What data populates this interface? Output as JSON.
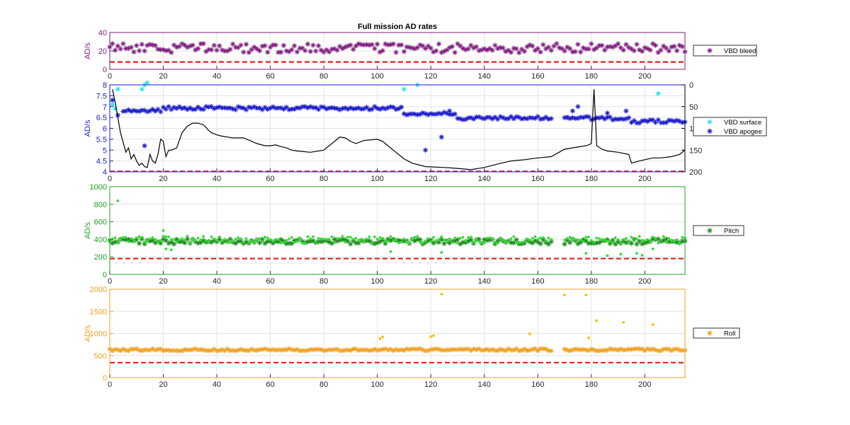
{
  "figure_title": "Full mission AD rates",
  "chart_data": [
    {
      "type": "scatter",
      "title": "Full mission AD rates",
      "ylabel": "AD/s",
      "xlim": [
        0,
        215
      ],
      "ylim": [
        0,
        40
      ],
      "xticks": [
        0,
        20,
        40,
        60,
        80,
        100,
        120,
        140,
        160,
        180,
        200
      ],
      "yticks": [
        0,
        20,
        40
      ],
      "grid": true,
      "legend": "right",
      "axis_color": "#7e1e7e",
      "series": [
        {
          "name": "VBD bleed",
          "marker": "asterisk",
          "color": "#7e1e7e",
          "model": "noisy",
          "base": 23,
          "amp": 5,
          "x_start": 0,
          "x_end": 215,
          "step": 1
        },
        {
          "marker": "dashed-line",
          "color": "#e0201e",
          "x": [
            0,
            215
          ],
          "y": [
            8,
            8
          ]
        }
      ]
    },
    {
      "type": "scatter",
      "ylabel": "AD/s",
      "xlim": [
        0,
        215
      ],
      "ylim": [
        4,
        8
      ],
      "y2lim": [
        200,
        0
      ],
      "xticks": [
        0,
        20,
        40,
        60,
        80,
        100,
        120,
        140,
        160,
        180,
        200
      ],
      "yticks": [
        4,
        4.5,
        5,
        5.5,
        6,
        6.5,
        7,
        7.5,
        8
      ],
      "y2ticks": [
        0,
        50,
        100,
        150,
        200
      ],
      "grid": true,
      "legend": "right",
      "axis_color": "#1a1acc",
      "series": [
        {
          "name": "VBD surface",
          "marker": "asterisk",
          "color": "#30e0ee",
          "x": [
            1,
            2,
            3,
            12,
            13,
            14,
            110,
            115,
            205
          ],
          "y": [
            7.1,
            6.9,
            7.8,
            7.8,
            8.0,
            8.1,
            7.8,
            8.0,
            7.6
          ]
        },
        {
          "name": "VBD apogee",
          "marker": "asterisk",
          "color": "#1a1acc",
          "x": [
            1,
            3,
            13,
            118,
            124,
            127,
            171,
            173,
            175,
            186,
            193
          ],
          "y": [
            7.3,
            6.6,
            5.2,
            5.0,
            5.6,
            6.8,
            6.5,
            6.8,
            7.0,
            6.7,
            6.8
          ]
        },
        {
          "marker": "asterisk",
          "color": "#1a1acc",
          "model": "apogee",
          "x_start": 5,
          "x_end": 215,
          "step": 1
        },
        {
          "marker": "line",
          "color": "#000000",
          "axis": "right",
          "x": [
            1,
            2,
            4,
            6,
            7,
            8,
            9,
            10,
            11,
            12,
            13,
            14,
            15,
            16,
            17,
            18,
            19,
            20,
            21,
            22,
            23,
            25,
            27,
            29,
            31,
            33,
            35,
            36,
            37,
            38,
            40,
            42,
            44,
            46,
            48,
            50,
            55,
            58,
            60,
            62,
            64,
            66,
            68,
            70,
            75,
            80,
            85,
            86,
            88,
            90,
            92,
            95,
            100,
            102,
            104,
            106,
            110,
            113,
            118,
            125,
            130,
            135,
            140,
            145,
            150,
            155,
            160,
            165,
            170,
            175,
            178,
            179,
            180,
            181,
            182,
            184,
            186,
            190,
            194,
            195,
            198,
            200,
            203,
            206,
            210,
            213,
            215
          ],
          "y": [
            10,
            40,
            110,
            155,
            145,
            170,
            160,
            175,
            185,
            180,
            188,
            190,
            160,
            175,
            180,
            160,
            125,
            130,
            165,
            150,
            150,
            145,
            110,
            95,
            88,
            88,
            92,
            98,
            105,
            110,
            115,
            118,
            120,
            122,
            122,
            122,
            135,
            140,
            140,
            138,
            142,
            145,
            150,
            152,
            155,
            150,
            125,
            120,
            122,
            130,
            135,
            128,
            125,
            130,
            140,
            150,
            170,
            180,
            188,
            190,
            192,
            195,
            190,
            182,
            175,
            172,
            168,
            165,
            148,
            143,
            140,
            138,
            135,
            10,
            140,
            148,
            152,
            155,
            160,
            180,
            175,
            172,
            168,
            168,
            165,
            160,
            150
          ]
        },
        {
          "marker": "dashed-line",
          "color": "#e0201e",
          "x": [
            0,
            215
          ],
          "y": [
            4.02,
            4.02
          ]
        }
      ]
    },
    {
      "type": "scatter",
      "ylabel": "AD/s",
      "xlim": [
        0,
        215
      ],
      "ylim": [
        0,
        1000
      ],
      "xticks": [
        0,
        20,
        40,
        60,
        80,
        100,
        120,
        140,
        160,
        180,
        200
      ],
      "yticks": [
        0,
        200,
        400,
        600,
        800,
        1000
      ],
      "grid": true,
      "legend": "right",
      "axis_color": "#20a020",
      "series": [
        {
          "name": "Pitch",
          "marker": "asterisk",
          "color": "#1f8a1f",
          "model": "noisy",
          "base": 375,
          "amp": 30,
          "x_start": 0,
          "x_end": 215,
          "step": 1,
          "gap": [
            165,
            170
          ]
        },
        {
          "marker": "dot",
          "color": "#33dd33",
          "model": "noisy",
          "base": 395,
          "amp": 40,
          "x_start": 0,
          "x_end": 215,
          "step": 1,
          "gap": [
            165,
            170
          ]
        },
        {
          "marker": "dot",
          "color": "#33dd33",
          "x": [
            3,
            20,
            21,
            23,
            105,
            124,
            178,
            186,
            191,
            197,
            199,
            203
          ],
          "y": [
            840,
            500,
            290,
            280,
            260,
            250,
            240,
            215,
            230,
            240,
            220,
            290
          ]
        },
        {
          "marker": "dashed-line",
          "color": "#e0201e",
          "x": [
            0,
            215
          ],
          "y": [
            180,
            180
          ]
        }
      ]
    },
    {
      "type": "scatter",
      "ylabel": "AD/s",
      "xlim": [
        0,
        215
      ],
      "ylim": [
        0,
        2000
      ],
      "xticks": [
        0,
        20,
        40,
        60,
        80,
        100,
        120,
        140,
        160,
        180,
        200
      ],
      "yticks": [
        0,
        500,
        1000,
        1500,
        2000
      ],
      "grid": true,
      "legend": "right",
      "axis_color": "#f0a020",
      "series": [
        {
          "name": "Roll",
          "marker": "asterisk",
          "color": "#f0a020",
          "model": "noisy",
          "base": 630,
          "amp": 25,
          "x_start": 0,
          "x_end": 215,
          "step": 1,
          "gap": [
            165,
            170
          ]
        },
        {
          "marker": "dot",
          "color": "#f5c000",
          "x": [
            101,
            102,
            120,
            121,
            124,
            157,
            170,
            178,
            179,
            182,
            192,
            203
          ],
          "y": [
            880,
            920,
            930,
            950,
            1890,
            990,
            1870,
            1870,
            900,
            1290,
            1250,
            1200
          ]
        },
        {
          "marker": "dashed-line",
          "color": "#e0201e",
          "x": [
            0,
            215
          ],
          "y": [
            340,
            340
          ]
        }
      ]
    }
  ]
}
